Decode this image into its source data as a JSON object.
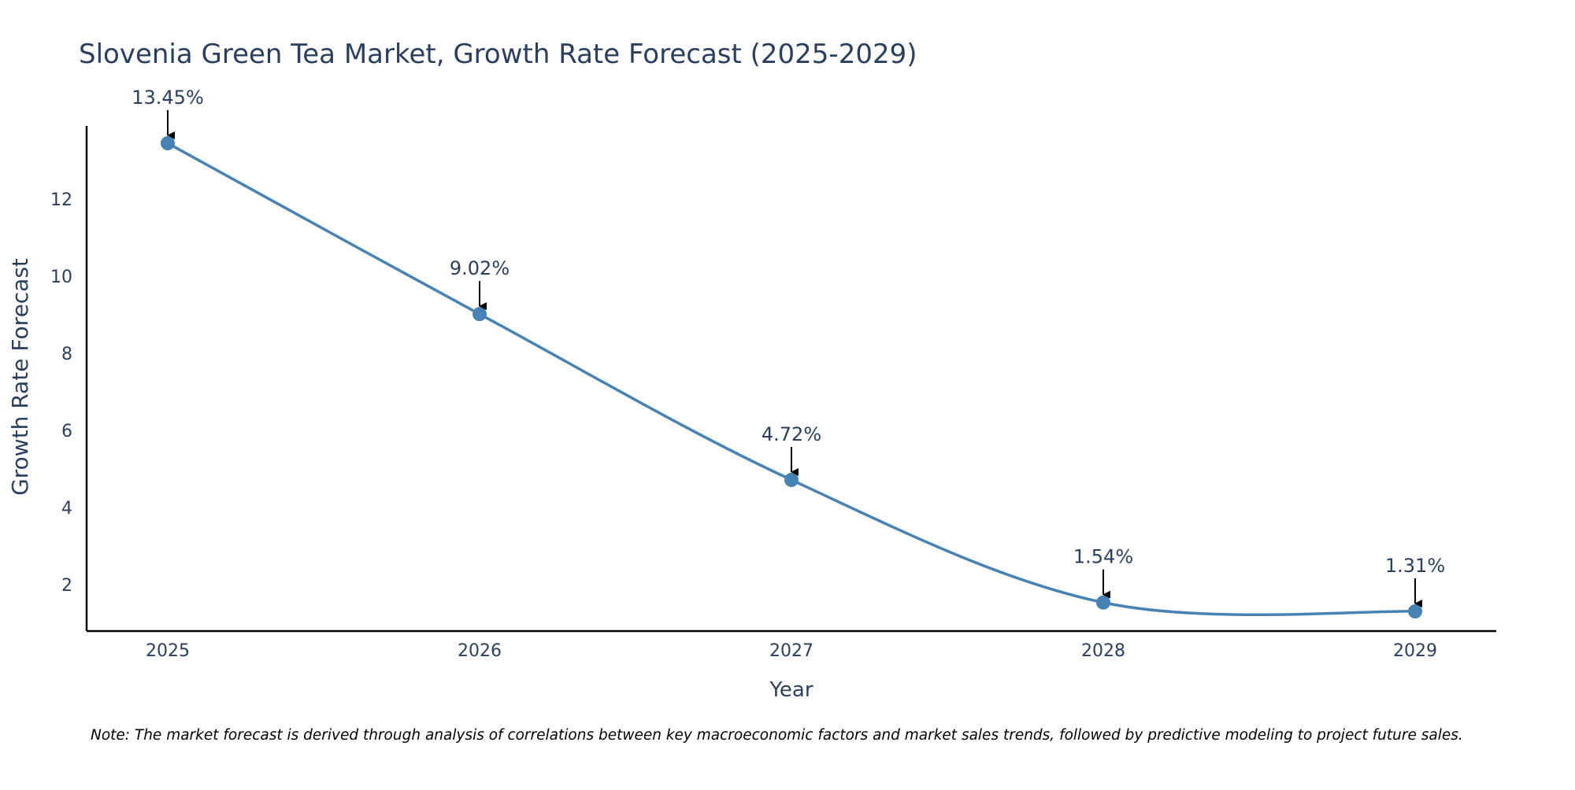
{
  "chart_data": {
    "type": "line",
    "title": "Slovenia Green Tea Market, Growth Rate Forecast (2025-2029)",
    "xlabel": "Year",
    "ylabel": "Growth Rate Forecast",
    "x": [
      "2025",
      "2026",
      "2027",
      "2028",
      "2029"
    ],
    "values": [
      13.45,
      9.02,
      4.72,
      1.54,
      1.31
    ],
    "data_labels": [
      "13.45%",
      "9.02%",
      "4.72%",
      "1.54%",
      "1.31%"
    ],
    "y_ticks": [
      2,
      4,
      6,
      8,
      10,
      12
    ],
    "ylim": [
      0.8,
      13.9
    ],
    "grid": false,
    "smooth": true,
    "note": "Note: The market forecast is derived through analysis of correlations between key macroeconomic factors and market sales trends, followed by predictive modeling to project future sales.",
    "colors": {
      "line": "#4682b4",
      "marker": "#4682b4",
      "text": "#2a3f5f",
      "axis": "#000000",
      "arrow": "#000000"
    }
  }
}
